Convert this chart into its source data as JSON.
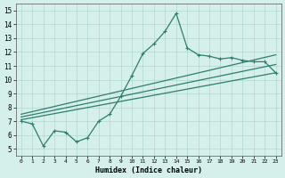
{
  "xlabel": "Humidex (Indice chaleur)",
  "xlim": [
    -0.5,
    23.5
  ],
  "ylim": [
    4.5,
    15.5
  ],
  "xticks": [
    0,
    1,
    2,
    3,
    4,
    5,
    6,
    7,
    8,
    9,
    10,
    11,
    12,
    13,
    14,
    15,
    16,
    17,
    18,
    19,
    20,
    21,
    22,
    23
  ],
  "yticks": [
    5,
    6,
    7,
    8,
    9,
    10,
    11,
    12,
    13,
    14,
    15
  ],
  "bg_color": "#d5efeb",
  "plot_bg": "#d5efeb",
  "grid_color": "#b0d8d0",
  "line_color": "#2e7d6e",
  "main_x": [
    0,
    1,
    2,
    3,
    4,
    5,
    6,
    7,
    8,
    9,
    10,
    11,
    12,
    13,
    14,
    15,
    16,
    17,
    18,
    19,
    20,
    21,
    22,
    23
  ],
  "main_y": [
    7.0,
    6.8,
    5.2,
    6.3,
    6.2,
    5.5,
    5.8,
    7.0,
    7.5,
    8.8,
    10.3,
    11.9,
    12.6,
    13.5,
    14.8,
    12.3,
    11.8,
    11.7,
    11.5,
    11.6,
    11.4,
    11.3,
    11.3,
    10.5
  ],
  "trend1_x": [
    0,
    23
  ],
  "trend1_y": [
    7.1,
    10.5
  ],
  "trend2_x": [
    0,
    23
  ],
  "trend2_y": [
    7.3,
    11.1
  ],
  "trend3_x": [
    0,
    23
  ],
  "trend3_y": [
    7.5,
    11.8
  ]
}
